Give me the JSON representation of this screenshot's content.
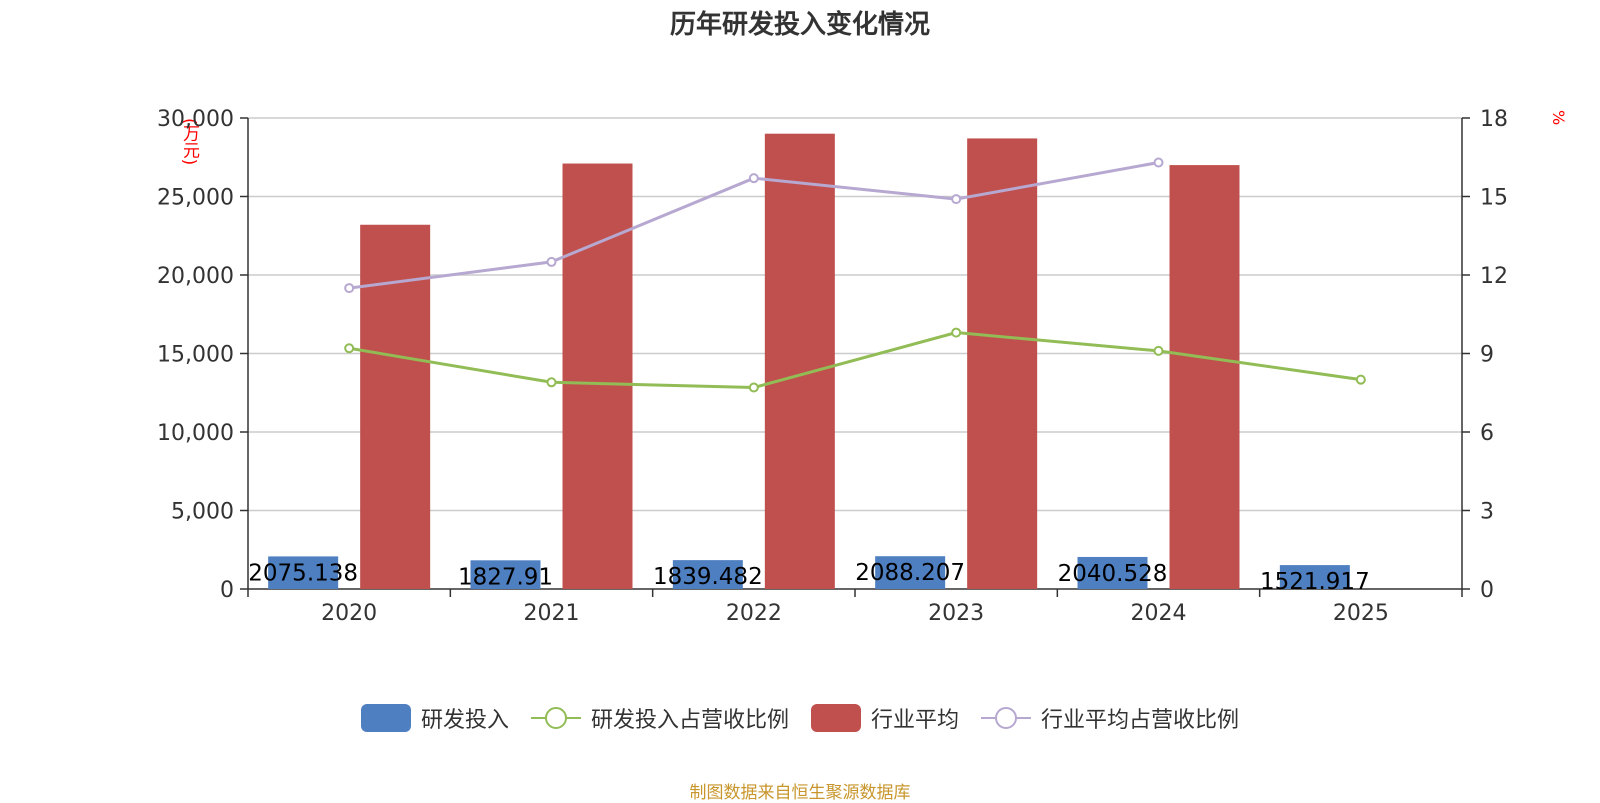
{
  "chart_data": {
    "type": "bar",
    "title": "历年研发投入变化情况",
    "categories": [
      "2020",
      "2021",
      "2022",
      "2023",
      "2024",
      "2025"
    ],
    "y_left": {
      "label": "(万元)",
      "min": 0,
      "max": 30000,
      "ticks": [
        "0",
        "5,000",
        "10,000",
        "15,000",
        "20,000",
        "25,000",
        "30,000"
      ]
    },
    "y_right": {
      "label": "%",
      "min": 0,
      "max": 18,
      "ticks": [
        "0",
        "3",
        "6",
        "9",
        "12",
        "15",
        "18"
      ]
    },
    "series": [
      {
        "name": "研发投入",
        "type": "bar",
        "axis": "left",
        "color": "#4e7fc1",
        "values": [
          2075.138,
          1827.91,
          1839.482,
          2088.207,
          2040.528,
          1521.917
        ],
        "labels": [
          "2075.138",
          "1827.91",
          "1839.482",
          "2088.207",
          "2040.528",
          "1521.917"
        ]
      },
      {
        "name": "研发投入占营收比例",
        "type": "line",
        "axis": "right",
        "color": "#92bc55",
        "values": [
          9.2,
          7.9,
          7.7,
          9.8,
          9.1,
          8.0
        ]
      },
      {
        "name": "行业平均",
        "type": "bar",
        "axis": "left",
        "color": "#c0504d",
        "values": [
          23200,
          27100,
          29000,
          28700,
          27000,
          null
        ]
      },
      {
        "name": "行业平均占营收比例",
        "type": "line",
        "axis": "right",
        "color": "#b6a8d0",
        "values": [
          11.5,
          12.5,
          15.7,
          14.9,
          16.3,
          null
        ]
      }
    ],
    "grid": true,
    "legend_position": "bottom"
  },
  "source": "制图数据来自恒生聚源数据库"
}
